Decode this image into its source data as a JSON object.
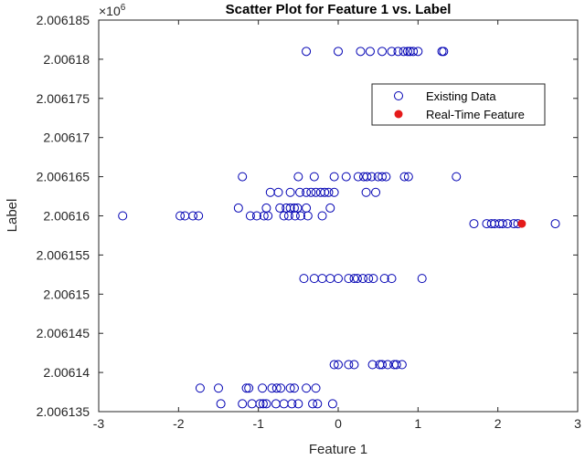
{
  "chart_data": {
    "type": "scatter",
    "title": "Scatter Plot for Feature 1 vs. Label",
    "xlabel": "Feature 1",
    "ylabel": "Label",
    "exponent_label": "×10",
    "exponent_power": "6",
    "xlim": [
      -3,
      3
    ],
    "ylim": [
      2.006135,
      2.006185
    ],
    "x_ticks": [
      -3,
      -2,
      -1,
      0,
      1,
      2,
      3
    ],
    "x_tick_labels": [
      "-3",
      "-2",
      "-1",
      "0",
      "1",
      "2",
      "3"
    ],
    "y_ticks": [
      2.006135,
      2.00614,
      2.006145,
      2.00615,
      2.006155,
      2.00616,
      2.006165,
      2.00617,
      2.006175,
      2.00618,
      2.006185
    ],
    "y_tick_labels": [
      "2.006135",
      "2.00614",
      "2.006145",
      "2.00615",
      "2.006155",
      "2.00616",
      "2.006165",
      "2.00617",
      "2.006175",
      "2.00618",
      "2.006185"
    ],
    "grid": false,
    "legend_position": "top-right",
    "colors": {
      "existing": "#0000b3",
      "realtime": "#e51a1a",
      "axis": "#262626"
    },
    "series": [
      {
        "name": "Existing Data",
        "marker": "open-circle",
        "groups": [
          {
            "y": 2.006181,
            "x": [
              -0.4,
              0.0,
              0.28,
              0.4,
              0.55,
              0.67,
              0.75,
              0.82,
              0.87,
              0.9,
              0.94,
              1.0,
              1.3,
              1.32
            ]
          },
          {
            "y": 2.006165,
            "x": [
              -1.2,
              -0.5,
              -0.3,
              -0.05,
              0.1,
              0.25,
              0.32,
              0.36,
              0.42,
              0.5,
              0.55,
              0.6,
              0.83,
              0.88,
              1.48
            ]
          },
          {
            "y": 2.006163,
            "x": [
              -0.85,
              -0.75,
              -0.6,
              -0.48,
              -0.4,
              -0.34,
              -0.28,
              -0.22,
              -0.17,
              -0.12,
              -0.05,
              0.35,
              0.47
            ]
          },
          {
            "y": 2.006161,
            "x": [
              -1.25,
              -0.9,
              -0.73,
              -0.65,
              -0.6,
              -0.55,
              -0.51,
              -0.4,
              -0.1
            ]
          },
          {
            "y": 2.00616,
            "x": [
              -2.7,
              -1.98,
              -1.92,
              -1.82,
              -1.75,
              -1.1,
              -1.02,
              -0.93,
              -0.88,
              -0.68,
              -0.62,
              -0.54,
              -0.47,
              -0.38,
              -0.2
            ]
          },
          {
            "y": 2.006159,
            "x": [
              1.7,
              1.86,
              1.92,
              1.96,
              2.02,
              2.06,
              2.12,
              2.2,
              2.25,
              2.72
            ]
          },
          {
            "y": 2.006152,
            "x": [
              -0.43,
              -0.3,
              -0.2,
              -0.1,
              0.0,
              0.13,
              0.2,
              0.24,
              0.31,
              0.38,
              0.44,
              0.58,
              0.67,
              1.05
            ]
          },
          {
            "y": 2.006141,
            "x": [
              -0.05,
              0.0,
              0.13,
              0.2,
              0.43,
              0.52,
              0.55,
              0.62,
              0.7,
              0.73,
              0.8
            ]
          },
          {
            "y": 2.006138,
            "x": [
              -1.73,
              -1.5,
              -1.15,
              -1.12,
              -0.95,
              -0.83,
              -0.77,
              -0.72,
              -0.6,
              -0.55,
              -0.4,
              -0.28
            ]
          },
          {
            "y": 2.006136,
            "x": [
              -1.47,
              -1.2,
              -1.08,
              -0.98,
              -0.94,
              -0.9,
              -0.78,
              -0.68,
              -0.58,
              -0.5,
              -0.32,
              -0.26,
              -0.07
            ]
          }
        ]
      },
      {
        "name": "Real-Time Feature",
        "marker": "filled-circle",
        "points": [
          {
            "x": 2.3,
            "y": 2.006159
          }
        ]
      }
    ]
  }
}
